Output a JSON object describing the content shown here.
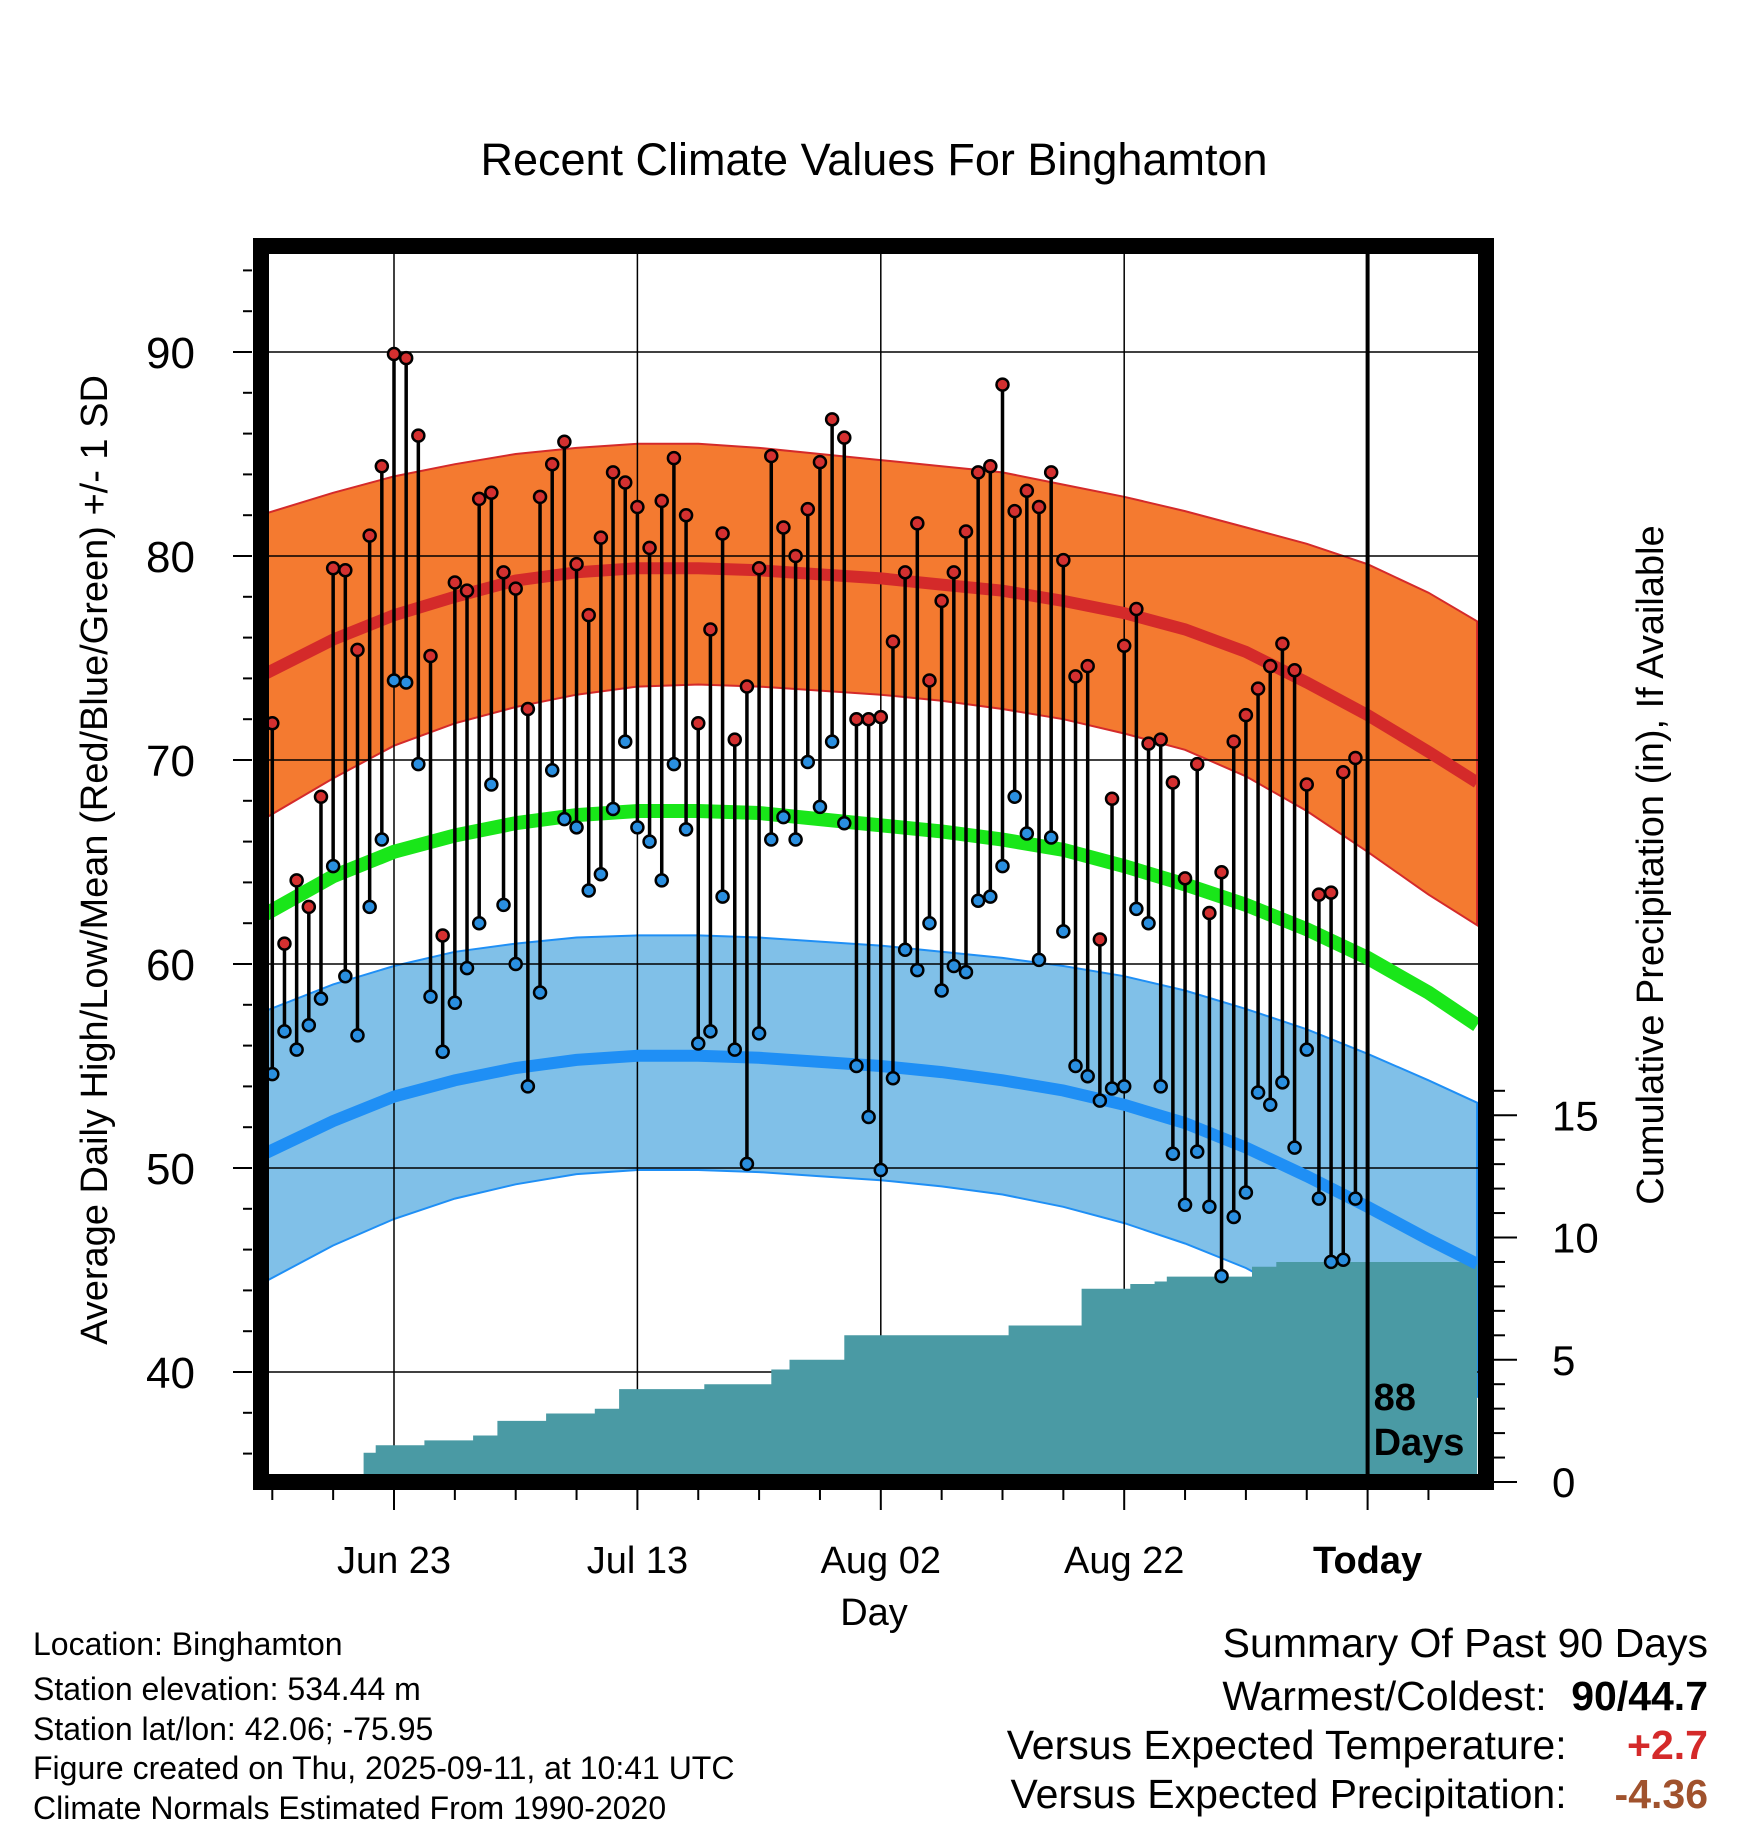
{
  "chart_data": {
    "type": "line",
    "title": "Recent Climate Values For Binghamton",
    "xlabel": "Day",
    "ylabel_left": "Average Daily High/Low/Mean (Red/Blue/Green) +/- 1 SD",
    "ylabel_right": "Cumulative Precipitation (in), If Available",
    "xlim": [
      -12,
      89
    ],
    "ylim": [
      35,
      95
    ],
    "y_ticks": [
      40,
      50,
      60,
      70,
      80,
      90
    ],
    "y2_ticks": [
      0,
      5,
      10,
      15
    ],
    "y2lim": [
      0,
      15
    ],
    "x_ticks": [
      {
        "day": 0,
        "label": "Jun 23"
      },
      {
        "day": 20,
        "label": "Jul 13"
      },
      {
        "day": 40,
        "label": "Aug 02"
      },
      {
        "day": 60,
        "label": "Aug 22"
      },
      {
        "day": 80,
        "label": "Today"
      }
    ],
    "today_marker": {
      "day": 80,
      "line1": "88",
      "line2": "Days"
    },
    "grid": true,
    "colors": {
      "high_band": "#f47a30",
      "high_line": "#d42a2a",
      "low_band": "#80c0e8",
      "low_line": "#1f8ff5",
      "mean_line": "#19e619",
      "precip": "#4a9aa4",
      "high_dot": "#d43030",
      "low_dot": "#2a8fe0"
    },
    "normals": {
      "days": [
        -11,
        -5,
        0,
        5,
        10,
        15,
        20,
        25,
        30,
        35,
        40,
        45,
        50,
        55,
        60,
        65,
        70,
        75,
        80,
        85,
        89
      ],
      "high_mean": [
        74.1,
        75.9,
        77.1,
        78.0,
        78.8,
        79.2,
        79.4,
        79.4,
        79.3,
        79.1,
        78.9,
        78.6,
        78.3,
        77.8,
        77.2,
        76.4,
        75.3,
        73.8,
        72.2,
        70.4,
        68.9
      ],
      "high_upper": [
        82.0,
        83.1,
        83.9,
        84.5,
        85.0,
        85.3,
        85.5,
        85.5,
        85.3,
        85.0,
        84.7,
        84.4,
        84.1,
        83.5,
        82.9,
        82.2,
        81.4,
        80.6,
        79.6,
        78.2,
        76.8
      ],
      "high_lower": [
        67.0,
        69.1,
        70.7,
        71.8,
        72.6,
        73.2,
        73.6,
        73.7,
        73.6,
        73.4,
        73.2,
        72.9,
        72.5,
        72.0,
        71.3,
        70.5,
        69.2,
        67.5,
        65.5,
        63.4,
        61.9
      ],
      "mean": [
        62.3,
        64.3,
        65.5,
        66.3,
        66.9,
        67.3,
        67.5,
        67.5,
        67.4,
        67.1,
        66.8,
        66.5,
        66.1,
        65.6,
        64.8,
        63.9,
        62.9,
        61.7,
        60.3,
        58.6,
        57.0
      ],
      "low_mean": [
        50.6,
        52.3,
        53.5,
        54.3,
        54.9,
        55.3,
        55.5,
        55.5,
        55.4,
        55.2,
        55.0,
        54.7,
        54.3,
        53.8,
        53.1,
        52.2,
        51.0,
        49.6,
        48.1,
        46.5,
        45.3
      ],
      "low_upper": [
        57.6,
        59.0,
        59.9,
        60.6,
        61.0,
        61.3,
        61.4,
        61.4,
        61.3,
        61.1,
        60.9,
        60.6,
        60.3,
        59.9,
        59.4,
        58.7,
        57.8,
        56.8,
        55.6,
        54.3,
        53.2
      ],
      "low_lower": [
        44.3,
        46.2,
        47.5,
        48.5,
        49.2,
        49.7,
        49.9,
        49.9,
        49.8,
        49.6,
        49.4,
        49.1,
        48.7,
        48.1,
        47.3,
        46.3,
        45.1,
        43.5,
        41.9,
        40.0,
        38.8
      ]
    },
    "daily": {
      "start_day": -10,
      "high": [
        71.8,
        61.0,
        64.1,
        62.8,
        68.2,
        79.4,
        79.3,
        75.4,
        81.0,
        84.4,
        89.9,
        89.7,
        85.9,
        75.1,
        61.4,
        78.7,
        78.3,
        82.8,
        83.1,
        79.2,
        78.4,
        72.5,
        82.9,
        84.5,
        85.6,
        79.6,
        77.1,
        80.9,
        84.1,
        83.6,
        82.4,
        80.4,
        82.7,
        84.8,
        82.0,
        71.8,
        76.4,
        81.1,
        71.0,
        73.6,
        79.4,
        84.9,
        81.4,
        80.0,
        82.3,
        84.6,
        86.7,
        85.8,
        72.0,
        72.0,
        72.1,
        75.8,
        79.2,
        81.6,
        73.9,
        77.8,
        79.2,
        81.2,
        84.1,
        84.4,
        88.4,
        82.2,
        83.2,
        82.4,
        84.1,
        79.8,
        74.1,
        74.6,
        61.2,
        68.1,
        75.6,
        77.4,
        70.8,
        71.0,
        68.9,
        64.2,
        69.8,
        62.5,
        64.5,
        70.9,
        72.2,
        73.5,
        74.6,
        75.7,
        74.4,
        68.8,
        63.4,
        63.5,
        69.4,
        70.1
      ],
      "low": [
        54.6,
        56.7,
        55.8,
        57.0,
        58.3,
        64.8,
        59.4,
        56.5,
        62.8,
        66.1,
        73.9,
        73.8,
        69.8,
        58.4,
        55.7,
        58.1,
        59.8,
        62.0,
        68.8,
        62.9,
        60.0,
        54.0,
        58.6,
        69.5,
        67.1,
        66.7,
        63.6,
        64.4,
        67.6,
        70.9,
        66.7,
        66.0,
        64.1,
        69.8,
        66.6,
        56.1,
        56.7,
        63.3,
        55.8,
        50.2,
        56.6,
        66.1,
        67.2,
        66.1,
        69.9,
        67.7,
        70.9,
        66.9,
        55.0,
        52.5,
        49.9,
        54.4,
        60.7,
        59.7,
        62.0,
        58.7,
        59.9,
        59.6,
        63.1,
        63.3,
        64.8,
        68.2,
        66.4,
        60.2,
        66.2,
        61.6,
        55.0,
        54.5,
        53.3,
        53.9,
        54.0,
        62.7,
        62.0,
        54.0,
        50.7,
        48.2,
        50.8,
        48.1,
        44.7,
        47.6,
        48.8,
        53.7,
        53.1,
        54.2,
        51.0,
        55.8,
        48.5,
        45.4,
        45.5,
        48.5
      ]
    },
    "precip_steps": [
      {
        "start": -12,
        "end": -7,
        "value": 0
      },
      {
        "start": -7,
        "end": -4.5,
        "value": 0.1
      },
      {
        "start": -4.5,
        "end": -2.5,
        "value": 0.1
      },
      {
        "start": -2.5,
        "end": -1.5,
        "value": 1.2
      },
      {
        "start": -1.5,
        "end": 2.5,
        "value": 1.5
      },
      {
        "start": 2.5,
        "end": 6.5,
        "value": 1.7
      },
      {
        "start": 6.5,
        "end": 8.5,
        "value": 1.9
      },
      {
        "start": 8.5,
        "end": 12.5,
        "value": 2.5
      },
      {
        "start": 12.5,
        "end": 16.5,
        "value": 2.8
      },
      {
        "start": 16.5,
        "end": 18.5,
        "value": 3.0
      },
      {
        "start": 18.5,
        "end": 25.5,
        "value": 3.8
      },
      {
        "start": 25.5,
        "end": 28.5,
        "value": 4.0
      },
      {
        "start": 28.5,
        "end": 31,
        "value": 4.0
      },
      {
        "start": 31,
        "end": 32.5,
        "value": 4.6
      },
      {
        "start": 32.5,
        "end": 35.5,
        "value": 5.0
      },
      {
        "start": 35.5,
        "end": 37,
        "value": 5.0
      },
      {
        "start": 37,
        "end": 38.5,
        "value": 6.0
      },
      {
        "start": 38.5,
        "end": 50.5,
        "value": 6.0
      },
      {
        "start": 50.5,
        "end": 51.5,
        "value": 6.4
      },
      {
        "start": 51.5,
        "end": 56.5,
        "value": 6.4
      },
      {
        "start": 56.5,
        "end": 58.5,
        "value": 7.9
      },
      {
        "start": 58.5,
        "end": 60.5,
        "value": 7.9
      },
      {
        "start": 60.5,
        "end": 62.5,
        "value": 8.1
      },
      {
        "start": 62.5,
        "end": 63.5,
        "value": 8.2
      },
      {
        "start": 63.5,
        "end": 67.5,
        "value": 8.4
      },
      {
        "start": 67.5,
        "end": 70.5,
        "value": 8.4
      },
      {
        "start": 70.5,
        "end": 72.5,
        "value": 8.8
      },
      {
        "start": 72.5,
        "end": 89,
        "value": 9.0
      }
    ]
  },
  "info": {
    "location": "Location: Binghamton",
    "elevation": "Station elevation: 534.44 m",
    "latlon": "Station lat/lon: 42.06; -75.95",
    "created": "Figure created on Thu, 2025-09-11, at 10:41 UTC",
    "normals": "Climate Normals Estimated From 1990-2020"
  },
  "summary": {
    "title": "Summary Of Past 90 Days",
    "warmest_label": "Warmest/Coldest:",
    "warmest_value": "90/44.7",
    "temp_label": "Versus Expected Temperature:",
    "temp_value": "+2.7",
    "temp_color": "#d42a2a",
    "precip_label": "Versus Expected Precipitation:",
    "precip_value": "-4.36",
    "precip_color": "#a0522d"
  }
}
